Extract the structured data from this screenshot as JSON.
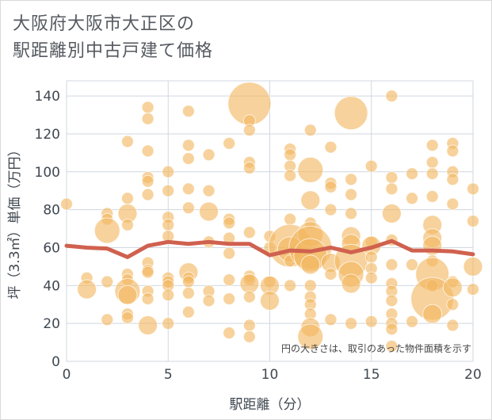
{
  "title_line1": "大阪府大阪市大正区の",
  "title_line2": "駅距離別中古戸建て価格",
  "chart_data": {
    "type": "scatter",
    "title": "大阪府大阪市大正区の駅距離別中古戸建て価格",
    "xlabel": "駅距離（分）",
    "ylabel": "坪（3.3㎡）単価（万円）",
    "xlim": [
      0,
      20
    ],
    "ylim": [
      0,
      148
    ],
    "xticks": [
      0,
      5,
      10,
      15,
      20
    ],
    "yticks": [
      0,
      20,
      40,
      60,
      80,
      100,
      120,
      140
    ],
    "grid": true,
    "note": "円の大きさは、取引のあった物件面積を示す",
    "bubble_color": "#f2b660",
    "line_color": "#d0614f",
    "average_line": {
      "x": [
        0,
        1,
        2,
        3,
        4,
        5,
        6,
        7,
        8,
        9,
        10,
        11,
        12,
        13,
        14,
        15,
        16,
        17,
        18,
        19,
        20
      ],
      "y": [
        61,
        60,
        59.5,
        55,
        61,
        63,
        62,
        63,
        62,
        62,
        56,
        58.5,
        58,
        60,
        57.5,
        60,
        63.5,
        58.5,
        58.5,
        58,
        56.5
      ]
    },
    "bubbles": [
      {
        "x": 0,
        "y": 83,
        "s": 1
      },
      {
        "x": 1,
        "y": 44,
        "s": 1
      },
      {
        "x": 1,
        "y": 38,
        "s": 2
      },
      {
        "x": 2,
        "y": 78,
        "s": 1
      },
      {
        "x": 2,
        "y": 75,
        "s": 1
      },
      {
        "x": 2,
        "y": 69,
        "s": 3
      },
      {
        "x": 2,
        "y": 42,
        "s": 1
      },
      {
        "x": 2,
        "y": 22,
        "s": 1
      },
      {
        "x": 3,
        "y": 116,
        "s": 1
      },
      {
        "x": 3,
        "y": 86,
        "s": 1
      },
      {
        "x": 3,
        "y": 78,
        "s": 2
      },
      {
        "x": 3,
        "y": 72,
        "s": 1
      },
      {
        "x": 3,
        "y": 46,
        "s": 1
      },
      {
        "x": 3,
        "y": 43,
        "s": 1
      },
      {
        "x": 3,
        "y": 37,
        "s": 3
      },
      {
        "x": 3,
        "y": 35,
        "s": 2
      },
      {
        "x": 3,
        "y": 25,
        "s": 1
      },
      {
        "x": 3,
        "y": 23,
        "s": 1
      },
      {
        "x": 4,
        "y": 134,
        "s": 1
      },
      {
        "x": 4,
        "y": 128,
        "s": 1
      },
      {
        "x": 4,
        "y": 111,
        "s": 1
      },
      {
        "x": 4,
        "y": 97,
        "s": 1
      },
      {
        "x": 4,
        "y": 95,
        "s": 1
      },
      {
        "x": 4,
        "y": 88,
        "s": 1
      },
      {
        "x": 4,
        "y": 52,
        "s": 1
      },
      {
        "x": 4,
        "y": 48,
        "s": 1
      },
      {
        "x": 4,
        "y": 47,
        "s": 1
      },
      {
        "x": 4,
        "y": 37,
        "s": 1
      },
      {
        "x": 4,
        "y": 33,
        "s": 1
      },
      {
        "x": 4,
        "y": 19,
        "s": 2
      },
      {
        "x": 5,
        "y": 100,
        "s": 1
      },
      {
        "x": 5,
        "y": 90,
        "s": 1
      },
      {
        "x": 5,
        "y": 76,
        "s": 1
      },
      {
        "x": 5,
        "y": 72,
        "s": 1
      },
      {
        "x": 5,
        "y": 66,
        "s": 1
      },
      {
        "x": 5,
        "y": 44,
        "s": 1
      },
      {
        "x": 5,
        "y": 42,
        "s": 1
      },
      {
        "x": 5,
        "y": 40,
        "s": 1
      },
      {
        "x": 5,
        "y": 35,
        "s": 1
      },
      {
        "x": 5,
        "y": 20,
        "s": 1
      },
      {
        "x": 6,
        "y": 132,
        "s": 1
      },
      {
        "x": 6,
        "y": 114,
        "s": 1
      },
      {
        "x": 6,
        "y": 107,
        "s": 1
      },
      {
        "x": 6,
        "y": 91,
        "s": 1
      },
      {
        "x": 6,
        "y": 81,
        "s": 1
      },
      {
        "x": 6,
        "y": 47,
        "s": 2
      },
      {
        "x": 6,
        "y": 44,
        "s": 1
      },
      {
        "x": 6,
        "y": 42,
        "s": 1
      },
      {
        "x": 6,
        "y": 36,
        "s": 1
      },
      {
        "x": 6,
        "y": 26,
        "s": 1
      },
      {
        "x": 7,
        "y": 109,
        "s": 1
      },
      {
        "x": 7,
        "y": 90,
        "s": 1
      },
      {
        "x": 7,
        "y": 79,
        "s": 2
      },
      {
        "x": 7,
        "y": 63,
        "s": 1
      },
      {
        "x": 7,
        "y": 37,
        "s": 1
      },
      {
        "x": 7,
        "y": 32,
        "s": 1
      },
      {
        "x": 8,
        "y": 115,
        "s": 1
      },
      {
        "x": 8,
        "y": 75,
        "s": 1
      },
      {
        "x": 8,
        "y": 73,
        "s": 1
      },
      {
        "x": 8,
        "y": 65,
        "s": 1
      },
      {
        "x": 8,
        "y": 57,
        "s": 1
      },
      {
        "x": 8,
        "y": 43,
        "s": 1
      },
      {
        "x": 8,
        "y": 33,
        "s": 1
      },
      {
        "x": 8,
        "y": 15,
        "s": 1
      },
      {
        "x": 9,
        "y": 136,
        "s": 5
      },
      {
        "x": 9,
        "y": 127,
        "s": 1
      },
      {
        "x": 9,
        "y": 122,
        "s": 1
      },
      {
        "x": 9,
        "y": 105,
        "s": 1
      },
      {
        "x": 9,
        "y": 102,
        "s": 1
      },
      {
        "x": 9,
        "y": 68,
        "s": 1
      },
      {
        "x": 9,
        "y": 45,
        "s": 1
      },
      {
        "x": 9,
        "y": 43,
        "s": 1
      },
      {
        "x": 9,
        "y": 41,
        "s": 2
      },
      {
        "x": 9,
        "y": 34,
        "s": 1
      },
      {
        "x": 9,
        "y": 19,
        "s": 1
      },
      {
        "x": 9,
        "y": 13,
        "s": 1
      },
      {
        "x": 10,
        "y": 66,
        "s": 1
      },
      {
        "x": 10,
        "y": 60,
        "s": 1
      },
      {
        "x": 10,
        "y": 42,
        "s": 1
      },
      {
        "x": 10,
        "y": 40,
        "s": 2
      },
      {
        "x": 10,
        "y": 32,
        "s": 2
      },
      {
        "x": 11,
        "y": 112,
        "s": 1
      },
      {
        "x": 11,
        "y": 109,
        "s": 1
      },
      {
        "x": 11,
        "y": 103,
        "s": 1
      },
      {
        "x": 11,
        "y": 98,
        "s": 1
      },
      {
        "x": 11,
        "y": 75,
        "s": 1
      },
      {
        "x": 11,
        "y": 61,
        "s": 5
      },
      {
        "x": 11,
        "y": 59,
        "s": 3
      },
      {
        "x": 11,
        "y": 53,
        "s": 1
      },
      {
        "x": 11,
        "y": 40,
        "s": 1
      },
      {
        "x": 12,
        "y": 122,
        "s": 1
      },
      {
        "x": 12,
        "y": 101,
        "s": 3
      },
      {
        "x": 12,
        "y": 85,
        "s": 2
      },
      {
        "x": 12,
        "y": 73,
        "s": 1
      },
      {
        "x": 12,
        "y": 67,
        "s": 3
      },
      {
        "x": 12,
        "y": 60,
        "s": 5
      },
      {
        "x": 12,
        "y": 56,
        "s": 4
      },
      {
        "x": 12,
        "y": 51,
        "s": 2
      },
      {
        "x": 12,
        "y": 40,
        "s": 1
      },
      {
        "x": 12,
        "y": 34,
        "s": 1
      },
      {
        "x": 12,
        "y": 30,
        "s": 1
      },
      {
        "x": 12,
        "y": 25,
        "s": 1
      },
      {
        "x": 12,
        "y": 18,
        "s": 2
      },
      {
        "x": 12,
        "y": 13,
        "s": 3
      },
      {
        "x": 13,
        "y": 113,
        "s": 1
      },
      {
        "x": 13,
        "y": 94,
        "s": 1
      },
      {
        "x": 13,
        "y": 92,
        "s": 1
      },
      {
        "x": 13,
        "y": 80,
        "s": 1
      },
      {
        "x": 13,
        "y": 52,
        "s": 2
      },
      {
        "x": 13,
        "y": 46,
        "s": 1
      },
      {
        "x": 13,
        "y": 22,
        "s": 1
      },
      {
        "x": 14,
        "y": 131,
        "s": 4
      },
      {
        "x": 14,
        "y": 96,
        "s": 1
      },
      {
        "x": 14,
        "y": 88,
        "s": 1
      },
      {
        "x": 14,
        "y": 78,
        "s": 1
      },
      {
        "x": 14,
        "y": 66,
        "s": 2
      },
      {
        "x": 14,
        "y": 62,
        "s": 2
      },
      {
        "x": 14,
        "y": 53,
        "s": 4
      },
      {
        "x": 14,
        "y": 46,
        "s": 3
      },
      {
        "x": 14,
        "y": 41,
        "s": 2
      },
      {
        "x": 14,
        "y": 20,
        "s": 1
      },
      {
        "x": 15,
        "y": 103,
        "s": 1
      },
      {
        "x": 15,
        "y": 63,
        "s": 1
      },
      {
        "x": 15,
        "y": 61,
        "s": 2
      },
      {
        "x": 15,
        "y": 55,
        "s": 1
      },
      {
        "x": 15,
        "y": 49,
        "s": 1
      },
      {
        "x": 15,
        "y": 44,
        "s": 1
      },
      {
        "x": 15,
        "y": 21,
        "s": 1
      },
      {
        "x": 16,
        "y": 140,
        "s": 1
      },
      {
        "x": 16,
        "y": 97,
        "s": 1
      },
      {
        "x": 16,
        "y": 91,
        "s": 1
      },
      {
        "x": 16,
        "y": 78,
        "s": 2
      },
      {
        "x": 16,
        "y": 64,
        "s": 1
      },
      {
        "x": 16,
        "y": 51,
        "s": 1
      },
      {
        "x": 16,
        "y": 41,
        "s": 1
      },
      {
        "x": 16,
        "y": 37,
        "s": 1
      },
      {
        "x": 16,
        "y": 32,
        "s": 1
      },
      {
        "x": 16,
        "y": 25,
        "s": 1
      },
      {
        "x": 16,
        "y": 20,
        "s": 1
      },
      {
        "x": 16,
        "y": 17,
        "s": 1
      },
      {
        "x": 16,
        "y": 8,
        "s": 1
      },
      {
        "x": 17,
        "y": 99,
        "s": 1
      },
      {
        "x": 17,
        "y": 86,
        "s": 1
      },
      {
        "x": 17,
        "y": 51,
        "s": 1
      },
      {
        "x": 17,
        "y": 21,
        "s": 1
      },
      {
        "x": 18,
        "y": 114,
        "s": 1
      },
      {
        "x": 18,
        "y": 105,
        "s": 1
      },
      {
        "x": 18,
        "y": 99,
        "s": 1
      },
      {
        "x": 18,
        "y": 87,
        "s": 1
      },
      {
        "x": 18,
        "y": 72,
        "s": 2
      },
      {
        "x": 18,
        "y": 65,
        "s": 2
      },
      {
        "x": 18,
        "y": 61,
        "s": 2
      },
      {
        "x": 18,
        "y": 53,
        "s": 1
      },
      {
        "x": 18,
        "y": 46,
        "s": 4
      },
      {
        "x": 18,
        "y": 40,
        "s": 1
      },
      {
        "x": 18,
        "y": 33,
        "s": 5
      },
      {
        "x": 18,
        "y": 25,
        "s": 2
      },
      {
        "x": 19,
        "y": 115,
        "s": 1
      },
      {
        "x": 19,
        "y": 111,
        "s": 1
      },
      {
        "x": 19,
        "y": 100,
        "s": 1
      },
      {
        "x": 19,
        "y": 96,
        "s": 1
      },
      {
        "x": 19,
        "y": 83,
        "s": 1
      },
      {
        "x": 19,
        "y": 42,
        "s": 1
      },
      {
        "x": 19,
        "y": 39,
        "s": 2
      },
      {
        "x": 19,
        "y": 30,
        "s": 1
      },
      {
        "x": 19,
        "y": 19,
        "s": 1
      },
      {
        "x": 20,
        "y": 91,
        "s": 1
      },
      {
        "x": 20,
        "y": 74,
        "s": 1
      },
      {
        "x": 20,
        "y": 50,
        "s": 2
      },
      {
        "x": 20,
        "y": 38,
        "s": 1
      }
    ]
  }
}
